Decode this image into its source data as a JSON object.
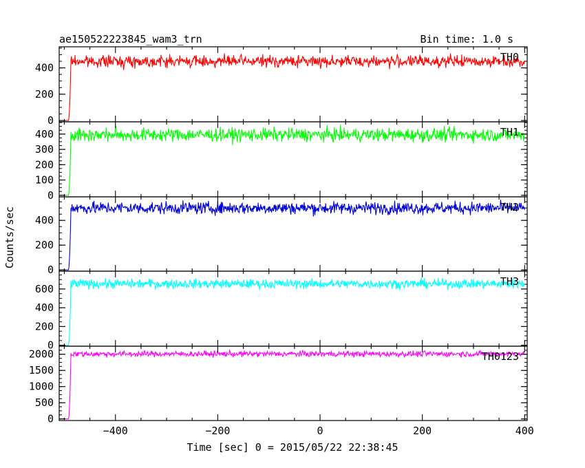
{
  "chart_data": {
    "type": "line",
    "title": "ae150522223845_wam3_trn",
    "subtitle": "Bin time: 1.0 s",
    "xlabel": "Time [sec] 0 = 2015/05/22 22:38:45",
    "ylabel": "Counts/sec",
    "xlim": [
      -510,
      405
    ],
    "x_ticks": [
      -400,
      -200,
      0,
      200,
      400
    ],
    "x_tick_labels": [
      "−400",
      "−200",
      "0",
      "200",
      "400"
    ],
    "grid": false,
    "panels": [
      {
        "name": "TH0",
        "color": "#ff0000",
        "ylim": [
          -10,
          560
        ],
        "y_ticks": [
          0,
          200,
          400
        ],
        "y_tick_labels": [
          "0",
          "200",
          "400"
        ],
        "onset": -490,
        "pre_level": 0,
        "mean": 450,
        "noise": 22
      },
      {
        "name": "TH1",
        "color": "#00ff00",
        "ylim": [
          -10,
          480
        ],
        "y_ticks": [
          0,
          100,
          200,
          300,
          400
        ],
        "y_tick_labels": [
          "0",
          "100",
          "200",
          "300",
          "400"
        ],
        "onset": -490,
        "pre_level": 0,
        "mean": 395,
        "noise": 22
      },
      {
        "name": "TH2",
        "color": "#0000dd",
        "ylim": [
          -10,
          590
        ],
        "y_ticks": [
          0,
          200,
          400
        ],
        "y_tick_labels": [
          "0",
          "200",
          "400"
        ],
        "onset": -490,
        "pre_level": 0,
        "mean": 500,
        "noise": 25
      },
      {
        "name": "TH3",
        "color": "#00ffff",
        "ylim": [
          -10,
          790
        ],
        "y_ticks": [
          0,
          200,
          400,
          600
        ],
        "y_tick_labels": [
          "0",
          "200",
          "400",
          "600"
        ],
        "onset": -490,
        "pre_level": 0,
        "mean": 655,
        "noise": 25
      },
      {
        "name": "TH0123",
        "color": "#ff00ff",
        "ylim": [
          -50,
          2250
        ],
        "y_ticks": [
          0,
          500,
          1000,
          1500,
          2000
        ],
        "y_tick_labels": [
          "0",
          "500",
          "1000",
          "1500",
          "2000"
        ],
        "onset": -490,
        "pre_level": 0,
        "mean": 2010,
        "noise": 45
      }
    ]
  }
}
